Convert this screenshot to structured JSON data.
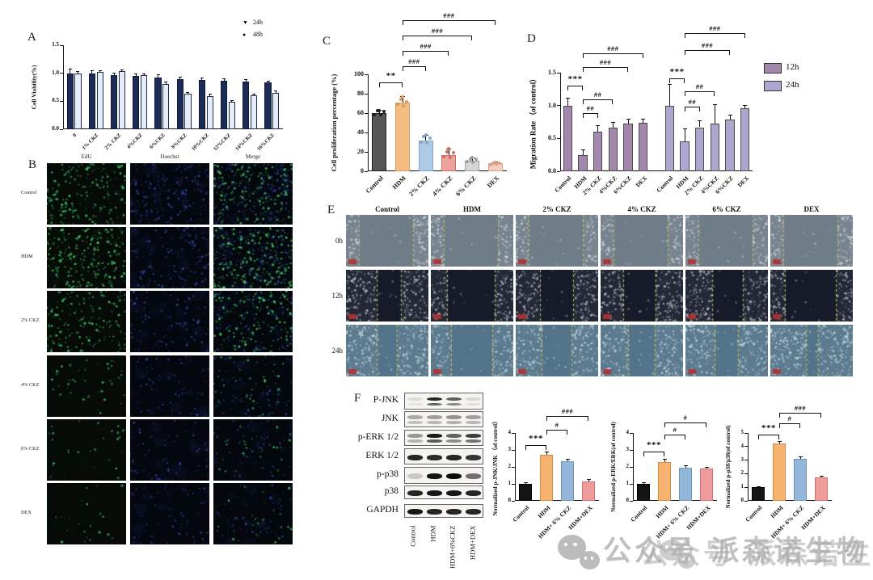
{
  "panels": {
    "A": {
      "label": "A"
    },
    "B": {
      "label": "B",
      "col_headers": [
        "EdU",
        "Hoechst",
        "Merge"
      ],
      "row_labels": [
        "Control",
        "HDM",
        "2% CKZ",
        "4% CKZ",
        "6% CKZ",
        "DEX"
      ]
    },
    "C": {
      "label": "C"
    },
    "D": {
      "label": "D"
    },
    "E": {
      "label": "E",
      "col_headers": [
        "Control",
        "HDM",
        "2% CKZ",
        "4% CKZ",
        "6% CKZ",
        "DEX"
      ],
      "row_labels": [
        "0h",
        "12h",
        "24h"
      ]
    },
    "F": {
      "label": "F",
      "blot_labels": [
        "P-JNK",
        "JNK",
        "p-ERK 1/2",
        "ERK 1/2",
        "p-p38",
        "p38",
        "GAPDH"
      ],
      "lane_labels": [
        "Control",
        "HDM",
        "HDM+6%CKZ",
        "HDM+DEX"
      ]
    }
  },
  "watermark": {
    "text": "公众号 派森诺生物",
    "icon": "wechat-icon",
    "color": "#bfbfbf"
  },
  "chart_data": [
    {
      "id": "A",
      "type": "bar",
      "title": "",
      "ylabel": "Cell Viability(%)",
      "ylim": [
        0,
        1.5
      ],
      "yticks": [
        0,
        0.5,
        1.0,
        1.5
      ],
      "ytick_labels": [
        "0.0",
        "0.5",
        "1.0",
        "1.5"
      ],
      "categories": [
        "0",
        "1% CKZ",
        "2% CKZ",
        "4%CKZ",
        "6%CKZ",
        "8%CKZ",
        "10%CKZ",
        "12%CKZ",
        "14%CKZ",
        "16%CKZ"
      ],
      "series": [
        {
          "name": "24h",
          "color": "#1c2b55",
          "border": "#101a36",
          "values": [
            1.0,
            0.99,
            0.96,
            0.95,
            0.93,
            0.9,
            0.88,
            0.86,
            0.85,
            0.83
          ],
          "errors": [
            0.08,
            0.05,
            0.04,
            0.04,
            0.04,
            0.03,
            0.03,
            0.04,
            0.03,
            0.03
          ]
        },
        {
          "name": "48h",
          "color": "#e7edf6",
          "border": "#1c2b55",
          "values": [
            1.0,
            1.02,
            1.04,
            0.96,
            0.81,
            0.63,
            0.59,
            0.49,
            0.6,
            0.65
          ],
          "errors": [
            0.03,
            0.03,
            0.02,
            0.03,
            0.03,
            0.03,
            0.04,
            0.02,
            0.03,
            0.03
          ]
        }
      ],
      "legend": [
        {
          "marker": "▼",
          "label": "24h"
        },
        {
          "marker": "●",
          "label": "48h"
        }
      ],
      "grid": false,
      "legend_position": "top-right"
    },
    {
      "id": "C",
      "type": "bar",
      "title": "",
      "ylabel": "Cell proliferation percentage  (%)",
      "ylim": [
        0,
        100
      ],
      "yticks": [
        0,
        20,
        40,
        60,
        80,
        100
      ],
      "ytick_labels": [
        "0",
        "20",
        "40",
        "60",
        "80",
        "100"
      ],
      "categories": [
        "Control",
        "HDM",
        "2% CKZ",
        "4% CKZ",
        "6% CKZ",
        "DEX"
      ],
      "values": [
        60,
        71,
        32,
        17,
        11,
        8
      ],
      "errors": [
        3,
        6,
        5,
        6,
        3,
        2
      ],
      "colors": [
        "#565656",
        "#f4bc81",
        "#aecae6",
        "#eba49c",
        "#d6d6d6",
        "#f6cfbe"
      ],
      "borders": [
        "#1f1f1f",
        "#d8995b",
        "#7fa6cc",
        "#cc6f66",
        "#9d9d9d",
        "#d9a089"
      ],
      "annotations": [
        {
          "a": 0,
          "b": 1,
          "label": "**",
          "y": 92
        },
        {
          "a": 1,
          "b": 2,
          "label": "###",
          "y": 108
        },
        {
          "a": 1,
          "b": 3,
          "label": "###",
          "y": 124
        },
        {
          "a": 1,
          "b": 4,
          "label": "###",
          "y": 140
        },
        {
          "a": 1,
          "b": 5,
          "label": "###",
          "y": 156
        }
      ],
      "grid": false
    },
    {
      "id": "D",
      "type": "bar",
      "title": "",
      "ylabel": "Migration Rate （of control）",
      "ylim": [
        0,
        1.5
      ],
      "yticks": [
        0,
        0.5,
        1.0,
        1.5
      ],
      "ytick_labels": [
        "0.0",
        "0.5",
        "1.0",
        "1.5"
      ],
      "categories": [
        "Control",
        "HDM",
        "2% CKZ",
        "4%CKZ",
        "6%CKZ",
        "DEX",
        "Control",
        "HDM",
        "2% CKZ",
        "4%CKZ",
        "6%CKZ",
        "DEX"
      ],
      "values": [
        1.0,
        0.24,
        0.6,
        0.66,
        0.72,
        0.74,
        1.0,
        0.46,
        0.67,
        0.73,
        0.79,
        0.96
      ],
      "errors": [
        0.11,
        0.09,
        0.1,
        0.09,
        0.07,
        0.05,
        0.32,
        0.19,
        0.1,
        0.29,
        0.06,
        0.04
      ],
      "colors": [
        "#a387ad",
        "#a387ad",
        "#a387ad",
        "#a387ad",
        "#a387ad",
        "#a387ad",
        "#aba7cf",
        "#aba7cf",
        "#aba7cf",
        "#aba7cf",
        "#aba7cf",
        "#aba7cf"
      ],
      "borders": [
        "#4a4a4a",
        "#4a4a4a",
        "#4a4a4a",
        "#4a4a4a",
        "#4a4a4a",
        "#4a4a4a",
        "#4a4a4a",
        "#4a4a4a",
        "#4a4a4a",
        "#4a4a4a",
        "#4a4a4a",
        "#4a4a4a"
      ],
      "cluster_gap_after": 5,
      "legend": [
        {
          "color": "#a387ad",
          "label": "12h"
        },
        {
          "color": "#aba7cf",
          "label": "24h"
        }
      ],
      "legend_position": "right",
      "annotations": [
        {
          "a": 0,
          "b": 1,
          "label": "***",
          "y": 1.3
        },
        {
          "a": 1,
          "b": 2,
          "label": "##",
          "y": 0.88
        },
        {
          "a": 1,
          "b": 3,
          "label": "##",
          "y": 1.1
        },
        {
          "a": 1,
          "b": 4,
          "label": "###",
          "y": 1.58
        },
        {
          "a": 1,
          "b": 5,
          "label": "###",
          "y": 1.8
        },
        {
          "a": 6,
          "b": 7,
          "label": "***",
          "y": 1.42
        },
        {
          "a": 7,
          "b": 8,
          "label": "##",
          "y": 0.98
        },
        {
          "a": 7,
          "b": 9,
          "label": "##",
          "y": 1.22
        },
        {
          "a": 7,
          "b": 10,
          "label": "###",
          "y": 1.85
        },
        {
          "a": 7,
          "b": 11,
          "label": "###",
          "y": 2.1
        }
      ],
      "grid": false
    },
    {
      "id": "F1",
      "type": "bar",
      "title": "",
      "ylabel": "Normalized p-JNK/JNK （of control）",
      "ylim": [
        0,
        4
      ],
      "yticks": [
        0,
        1,
        2,
        3,
        4
      ],
      "ytick_labels": [
        "0",
        "1",
        "2",
        "3",
        "4"
      ],
      "categories": [
        "Control",
        "HDM",
        "HDM+ 6% CKZ",
        "HDM+DEX"
      ],
      "values": [
        1.0,
        2.7,
        2.35,
        1.15
      ],
      "errors": [
        0.05,
        0.18,
        0.12,
        0.1
      ],
      "colors": [
        "#141414",
        "#f5b36f",
        "#94b6d8",
        "#f09c9c"
      ],
      "borders": [
        "#000000",
        "#cf8f4a",
        "#6e93ba",
        "#cc7070"
      ],
      "annotations": [
        {
          "a": 0,
          "b": 1,
          "label": "***",
          "y": 3.3
        },
        {
          "a": 1,
          "b": 2,
          "label": "#",
          "y": 4.2
        },
        {
          "a": 1,
          "b": 3,
          "label": "###",
          "y": 5.0
        }
      ],
      "grid": false
    },
    {
      "id": "F2",
      "type": "bar",
      "title": "",
      "ylabel": "Normalized p-ERK/ERK(of control)",
      "ylim": [
        0,
        4
      ],
      "yticks": [
        0,
        1,
        2,
        3,
        4
      ],
      "ytick_labels": [
        "0",
        "1",
        "2",
        "3",
        "4"
      ],
      "categories": [
        "Control",
        "HDM",
        "HDM+ 6% CKZ",
        "HDM+DEX"
      ],
      "values": [
        1.0,
        2.3,
        1.95,
        1.9
      ],
      "errors": [
        0.05,
        0.15,
        0.1,
        0.08
      ],
      "colors": [
        "#141414",
        "#f5b36f",
        "#94b6d8",
        "#f09c9c"
      ],
      "borders": [
        "#000000",
        "#cf8f4a",
        "#6e93ba",
        "#cc7070"
      ],
      "annotations": [
        {
          "a": 0,
          "b": 1,
          "label": "***",
          "y": 2.9
        },
        {
          "a": 1,
          "b": 2,
          "label": "#",
          "y": 3.9
        },
        {
          "a": 1,
          "b": 3,
          "label": "#",
          "y": 4.6
        }
      ],
      "grid": false
    },
    {
      "id": "F3",
      "type": "bar",
      "title": "",
      "ylabel": "Normalized p-p38/p38(of control)",
      "ylim": [
        0,
        5
      ],
      "yticks": [
        0,
        1,
        2,
        3,
        4,
        5
      ],
      "ytick_labels": [
        "0",
        "1",
        "2",
        "3",
        "4",
        "5"
      ],
      "categories": [
        "Control",
        "HDM",
        "HDM+ 6% CKZ",
        "HDM+DEX"
      ],
      "values": [
        1.0,
        4.2,
        3.1,
        1.7
      ],
      "errors": [
        0.05,
        0.18,
        0.12,
        0.1
      ],
      "colors": [
        "#141414",
        "#f5b36f",
        "#94b6d8",
        "#f09c9c"
      ],
      "borders": [
        "#000000",
        "#cf8f4a",
        "#6e93ba",
        "#cc7070"
      ],
      "annotations": [
        {
          "a": 0,
          "b": 1,
          "label": "***",
          "y": 4.9
        },
        {
          "a": 1,
          "b": 2,
          "label": "#",
          "y": 5.7
        },
        {
          "a": 1,
          "b": 3,
          "label": "###",
          "y": 6.5
        }
      ],
      "grid": false
    }
  ]
}
